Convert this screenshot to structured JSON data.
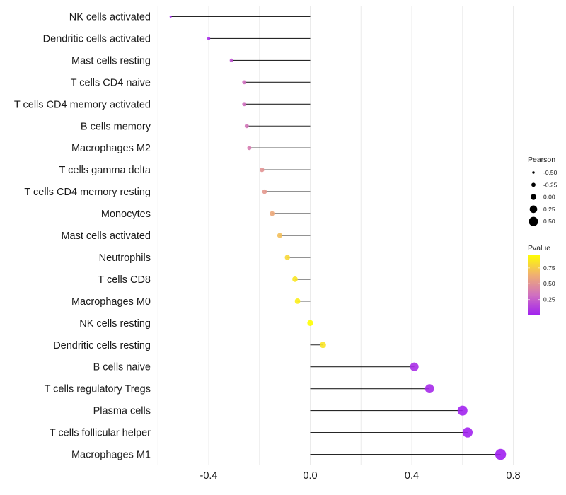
{
  "chart_data": {
    "type": "lollipop",
    "title": "",
    "xlabel": "",
    "ylabel": "",
    "xlim": [
      -0.6,
      0.8
    ],
    "x_ticks": [
      -0.4,
      0.0,
      0.4,
      0.8
    ],
    "x_tick_labels": [
      "-0.4",
      "0.0",
      "0.4",
      "0.8"
    ],
    "grid": true,
    "categories": [
      "NK cells activated",
      "Dendritic cells activated",
      "Mast cells resting",
      "T cells CD4 naive",
      "T cells CD4 memory activated",
      "B cells memory",
      "Macrophages M2",
      "T cells gamma delta",
      "T cells CD4 memory resting",
      "Monocytes",
      "Mast cells activated",
      "Neutrophils",
      "T cells CD8",
      "Macrophages M0",
      "NK cells resting",
      "Dendritic cells resting",
      "B cells naive",
      "T cells regulatory  Tregs ",
      "Plasma cells",
      "T cells follicular helper",
      "Macrophages M1"
    ],
    "pearson": [
      -0.55,
      -0.4,
      -0.31,
      -0.26,
      -0.26,
      -0.25,
      -0.24,
      -0.19,
      -0.18,
      -0.15,
      -0.12,
      -0.09,
      -0.06,
      -0.05,
      0.0,
      0.05,
      0.41,
      0.47,
      0.6,
      0.62,
      0.75
    ],
    "pvalue": [
      0.01,
      0.05,
      0.2,
      0.32,
      0.32,
      0.35,
      0.38,
      0.5,
      0.52,
      0.6,
      0.7,
      0.8,
      0.86,
      0.89,
      0.99,
      0.85,
      0.06,
      0.04,
      0.01,
      0.01,
      0.0
    ],
    "legend": {
      "placement": "right",
      "size": {
        "title": "Pearson",
        "values": [
          -0.5,
          -0.25,
          0.0,
          0.25,
          0.5
        ],
        "labels": [
          "-0.50",
          "-0.25",
          "0.00",
          "0.25",
          "0.50"
        ]
      },
      "color": {
        "title": "Pvalue",
        "range": [
          0.0,
          0.96
        ],
        "breaks": [
          0.25,
          0.5,
          0.75
        ],
        "labels": [
          "0.25",
          "0.50",
          "0.75"
        ],
        "gradient": [
          "#a020f0",
          "#d070c0",
          "#f0b070",
          "#ffff00"
        ]
      }
    },
    "colors": {
      "segment": "#000000",
      "grid": "#ebebeb",
      "point_low": "#a020f0",
      "point_mid": "#d070c0",
      "point_mid2": "#f0b070",
      "point_high": "#ffff00"
    }
  }
}
